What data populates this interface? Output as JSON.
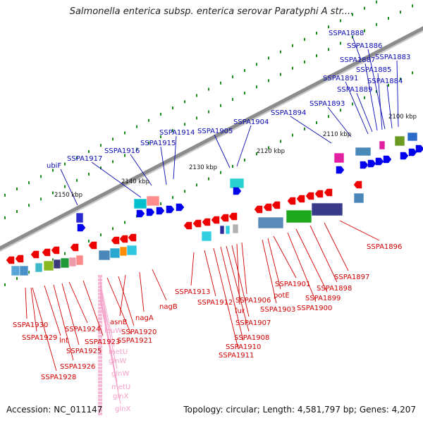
{
  "title": "Salmonella enterica subsp. enterica serovar Paratyphi A str....",
  "accession": "Accession: NC_011147",
  "topology": "Topology: circular; Length: 4,581,797 bp; Genes: 4,207",
  "colors": {
    "forward_label": "#0a0ab4",
    "reverse_label": "#d00000",
    "rna_label": "#f4a0c8",
    "forward_gene": "#0000ee",
    "reverse_gene": "#ee0000",
    "backbone": "#8c8c8c",
    "tick": "#1a8a1a"
  },
  "scale_labels": [
    {
      "text": "2150 kbp"
    },
    {
      "text": "2140 kbp"
    },
    {
      "text": "2130 kbp"
    },
    {
      "text": "2120 kbp"
    },
    {
      "text": "2110 kbp"
    },
    {
      "text": "2100 kbp"
    }
  ],
  "forward_labels": [
    {
      "text": "ubiF"
    },
    {
      "text": "SSPA1917"
    },
    {
      "text": "SSPA1916"
    },
    {
      "text": "SSPA1915"
    },
    {
      "text": "SSPA1914"
    },
    {
      "text": "SSPA1905"
    },
    {
      "text": "SSPA1904"
    },
    {
      "text": "SSPA1894"
    },
    {
      "text": "SSPA1893"
    },
    {
      "text": "SSPA1891"
    },
    {
      "text": "SSPA1889"
    },
    {
      "text": "SSPA1887"
    },
    {
      "text": "SSPA1886"
    },
    {
      "text": "SSPA1888"
    },
    {
      "text": "SSPA1885"
    },
    {
      "text": "SSPA1884"
    },
    {
      "text": "SSPA1883"
    }
  ],
  "reverse_labels": [
    {
      "text": "SSPA1930"
    },
    {
      "text": "SSPA1929"
    },
    {
      "text": "lnt"
    },
    {
      "text": "SSPA1928"
    },
    {
      "text": "SSPA1926"
    },
    {
      "text": "SSPA1925"
    },
    {
      "text": "SSPA1924"
    },
    {
      "text": "SSPA1923"
    },
    {
      "text": "SSPA1921"
    },
    {
      "text": "SSPA1920"
    },
    {
      "text": "asnB"
    },
    {
      "text": "nagA"
    },
    {
      "text": "nagB"
    },
    {
      "text": "SSPA1913"
    },
    {
      "text": "SSPA1912"
    },
    {
      "text": "SSPA1911"
    },
    {
      "text": "SSPA1910"
    },
    {
      "text": "SSPA1908"
    },
    {
      "text": "SSPA1907"
    },
    {
      "text": "fur"
    },
    {
      "text": "SSPA1906"
    },
    {
      "text": "SSPA1903"
    },
    {
      "text": "potE"
    },
    {
      "text": "SSPA1901"
    },
    {
      "text": "SSPA1900"
    },
    {
      "text": "SSPA1899"
    },
    {
      "text": "SSPA1898"
    },
    {
      "text": "SSPA1897"
    },
    {
      "text": "SSPA1896"
    }
  ],
  "rna_labels": [
    {
      "text": "leuW"
    },
    {
      "text": "metU"
    },
    {
      "text": "glnW"
    },
    {
      "text": "glnW"
    },
    {
      "text": "metU"
    },
    {
      "text": "glnX"
    },
    {
      "text": "glnX"
    }
  ]
}
